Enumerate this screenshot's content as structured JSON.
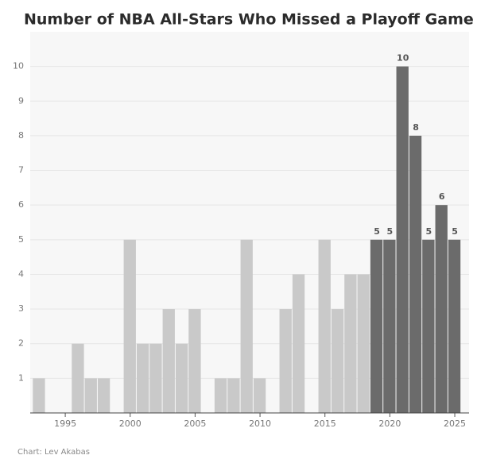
{
  "chart_data": {
    "type": "bar",
    "title": "Number of NBA All-Stars Who Missed a Playoff Game",
    "source": "Chart: Lev Akabas",
    "x": [
      1993,
      1994,
      1995,
      1996,
      1997,
      1998,
      1999,
      2000,
      2001,
      2002,
      2003,
      2004,
      2005,
      2006,
      2007,
      2008,
      2009,
      2010,
      2011,
      2012,
      2013,
      2014,
      2015,
      2016,
      2017,
      2018,
      2019,
      2020,
      2021,
      2022,
      2023,
      2024,
      2025
    ],
    "values": [
      1,
      0,
      0,
      2,
      1,
      1,
      0,
      5,
      2,
      2,
      3,
      2,
      3,
      0,
      1,
      1,
      5,
      1,
      0,
      3,
      4,
      0,
      5,
      3,
      4,
      4,
      5,
      5,
      10,
      8,
      5,
      6,
      5
    ],
    "colors": [
      "#c9c9c9",
      "#c9c9c9",
      "#c9c9c9",
      "#c9c9c9",
      "#c9c9c9",
      "#c9c9c9",
      "#c9c9c9",
      "#c9c9c9",
      "#c9c9c9",
      "#c9c9c9",
      "#c9c9c9",
      "#c9c9c9",
      "#c9c9c9",
      "#c9c9c9",
      "#c9c9c9",
      "#c9c9c9",
      "#c9c9c9",
      "#c9c9c9",
      "#c9c9c9",
      "#c9c9c9",
      "#c9c9c9",
      "#c9c9c9",
      "#c9c9c9",
      "#c9c9c9",
      "#c9c9c9",
      "#c9c9c9",
      "#6b6b6b",
      "#6b6b6b",
      "#6b6b6b",
      "#6b6b6b",
      "#6b6b6b",
      "#6b6b6b",
      "#6b6b6b"
    ],
    "labeled": [
      false,
      false,
      false,
      false,
      false,
      false,
      false,
      false,
      false,
      false,
      false,
      false,
      false,
      false,
      false,
      false,
      false,
      false,
      false,
      false,
      false,
      false,
      false,
      false,
      false,
      false,
      true,
      true,
      true,
      true,
      true,
      true,
      true
    ],
    "xlim": [
      1992.3,
      2026.1
    ],
    "xticks": [
      1995,
      2000,
      2005,
      2010,
      2015,
      2020,
      2025
    ],
    "ylim": [
      0,
      11
    ],
    "yticks": [
      1,
      2,
      3,
      4,
      5,
      6,
      7,
      8,
      9,
      10
    ],
    "grid": true
  }
}
